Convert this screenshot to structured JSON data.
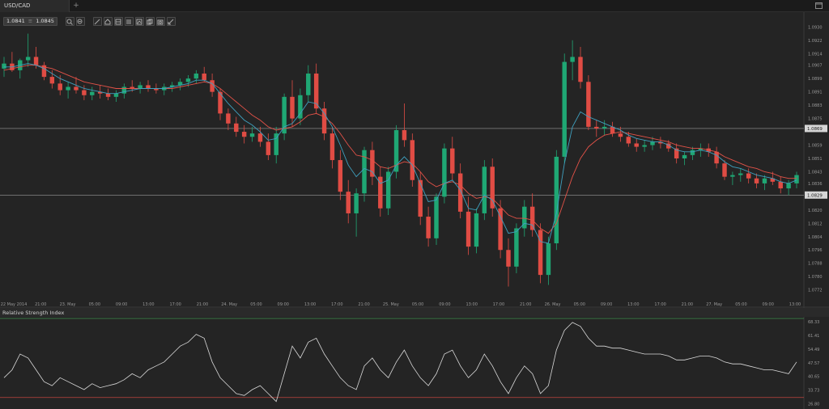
{
  "tab": {
    "symbol": "USD/CAD",
    "add_label": "+"
  },
  "quote": {
    "bid": "1.0841",
    "separator": "≡",
    "ask": "1.0845"
  },
  "toolbar_icons": [
    "zoom-in-icon",
    "zoom-out-icon",
    "draw-line-icon",
    "house-icon",
    "layers-icon",
    "list-icon",
    "chart-icon",
    "copy-icon",
    "camera-icon",
    "measure-icon"
  ],
  "price_axis": {
    "labels": [
      "1.0930",
      "1.0922",
      "1.0914",
      "1.0907",
      "1.0899",
      "1.0891",
      "1.0883",
      "1.0875",
      "1.0859",
      "1.0851",
      "1.0843",
      "1.0836",
      "1.0820",
      "1.0812",
      "1.0804",
      "1.0796",
      "1.0788",
      "1.0780",
      "1.0772"
    ],
    "highlight_upper": "1.0869",
    "highlight_lower": "1.0829"
  },
  "time_axis": {
    "labels": [
      "22 May 2014",
      "21:00",
      "23. May",
      "05:00",
      "09:00",
      "13:00",
      "17:00",
      "21:00",
      "24. May",
      "05:00",
      "09:00",
      "13:00",
      "17:00",
      "21:00",
      "25. May",
      "05:00",
      "09:00",
      "13:00",
      "17:00",
      "21:00",
      "26. May",
      "05:00",
      "09:00",
      "13:00",
      "17:00",
      "21:00",
      "27. May",
      "05:00",
      "09:00",
      "13:00"
    ]
  },
  "indicator": {
    "title": "Relative Strength Index",
    "labels": [
      "68.33",
      "61.41",
      "54.49",
      "47.57",
      "40.65",
      "33.73",
      "26.80"
    ]
  },
  "chart_data": {
    "type": "candlestick",
    "price_ylim": [
      1.0766,
      1.0936
    ],
    "rsi_ylim": [
      25.0,
      70.0
    ],
    "rsi_levels": [
      70,
      30
    ],
    "candles": [
      [
        1.0905,
        1.0912,
        1.09,
        1.0908
      ],
      [
        1.0908,
        1.0915,
        1.0903,
        1.0904
      ],
      [
        1.0904,
        1.0911,
        1.0899,
        1.091
      ],
      [
        1.091,
        1.0926,
        1.0906,
        1.0912
      ],
      [
        1.0912,
        1.0918,
        1.0905,
        1.0907
      ],
      [
        1.0907,
        1.0909,
        1.0898,
        1.09
      ],
      [
        1.09,
        1.0904,
        1.0893,
        1.0896
      ],
      [
        1.0896,
        1.0901,
        1.0889,
        1.0892
      ],
      [
        1.0892,
        1.0897,
        1.0887,
        1.0894
      ],
      [
        1.0894,
        1.09,
        1.089,
        1.0892
      ],
      [
        1.0892,
        1.0895,
        1.0886,
        1.0889
      ],
      [
        1.0889,
        1.0894,
        1.0886,
        1.0891
      ],
      [
        1.0891,
        1.0895,
        1.0887,
        1.089
      ],
      [
        1.089,
        1.0893,
        1.0886,
        1.0888
      ],
      [
        1.0888,
        1.0892,
        1.0885,
        1.089
      ],
      [
        1.089,
        1.0896,
        1.0887,
        1.0894
      ],
      [
        1.0894,
        1.0898,
        1.0891,
        1.0893
      ],
      [
        1.0893,
        1.0897,
        1.089,
        1.0895
      ],
      [
        1.0895,
        1.0898,
        1.0891,
        1.0893
      ],
      [
        1.0893,
        1.0896,
        1.089,
        1.0892
      ],
      [
        1.0892,
        1.0896,
        1.0889,
        1.0894
      ],
      [
        1.0894,
        1.0897,
        1.0891,
        1.0895
      ],
      [
        1.0895,
        1.0899,
        1.0892,
        1.0897
      ],
      [
        1.0897,
        1.0901,
        1.0894,
        1.0899
      ],
      [
        1.0899,
        1.0904,
        1.0896,
        1.0902
      ],
      [
        1.0902,
        1.0906,
        1.0897,
        1.0898
      ],
      [
        1.0898,
        1.0902,
        1.0888,
        1.0891
      ],
      [
        1.0891,
        1.0893,
        1.0874,
        1.0878
      ],
      [
        1.0878,
        1.0881,
        1.0868,
        1.0872
      ],
      [
        1.0872,
        1.0876,
        1.0864,
        1.0867
      ],
      [
        1.0867,
        1.0871,
        1.086,
        1.0864
      ],
      [
        1.0864,
        1.087,
        1.0861,
        1.0866
      ],
      [
        1.0866,
        1.087,
        1.0858,
        1.0861
      ],
      [
        1.0861,
        1.0866,
        1.085,
        1.0853
      ],
      [
        1.0853,
        1.087,
        1.0848,
        1.0866
      ],
      [
        1.0866,
        1.089,
        1.0862,
        1.0888
      ],
      [
        1.0888,
        1.0898,
        1.087,
        1.0875
      ],
      [
        1.0875,
        1.0893,
        1.0871,
        1.0889
      ],
      [
        1.0889,
        1.0907,
        1.0885,
        1.0902
      ],
      [
        1.0902,
        1.0908,
        1.0878,
        1.0881
      ],
      [
        1.0881,
        1.0885,
        1.0862,
        1.0866
      ],
      [
        1.0866,
        1.087,
        1.0845,
        1.085
      ],
      [
        1.085,
        1.0856,
        1.0826,
        1.0831
      ],
      [
        1.0831,
        1.0838,
        1.0812,
        1.0818
      ],
      [
        1.0818,
        1.0833,
        1.0804,
        1.083
      ],
      [
        1.083,
        1.0858,
        1.0825,
        1.0856
      ],
      [
        1.0856,
        1.0861,
        1.0835,
        1.084
      ],
      [
        1.084,
        1.0846,
        1.0816,
        1.0821
      ],
      [
        1.0821,
        1.0846,
        1.0817,
        1.0843
      ],
      [
        1.0843,
        1.0871,
        1.0839,
        1.0868
      ],
      [
        1.0868,
        1.0884,
        1.0858,
        1.0862
      ],
      [
        1.0862,
        1.0866,
        1.0834,
        1.0838
      ],
      [
        1.0838,
        1.0843,
        1.0811,
        1.0816
      ],
      [
        1.0816,
        1.0822,
        1.0798,
        1.0803
      ],
      [
        1.0803,
        1.083,
        1.0799,
        1.0828
      ],
      [
        1.0828,
        1.086,
        1.0824,
        1.0857
      ],
      [
        1.0857,
        1.0864,
        1.0838,
        1.0842
      ],
      [
        1.0842,
        1.0848,
        1.0815,
        1.0819
      ],
      [
        1.0819,
        1.0828,
        1.0793,
        1.0798
      ],
      [
        1.0798,
        1.0821,
        1.0794,
        1.0818
      ],
      [
        1.0818,
        1.085,
        1.0814,
        1.0846
      ],
      [
        1.0846,
        1.0851,
        1.0816,
        1.0821
      ],
      [
        1.0821,
        1.0826,
        1.0791,
        1.0796
      ],
      [
        1.0796,
        1.0803,
        1.0774,
        1.0786
      ],
      [
        1.0786,
        1.0812,
        1.0782,
        1.0809
      ],
      [
        1.0809,
        1.0826,
        1.0804,
        1.0822
      ],
      [
        1.0822,
        1.083,
        1.0804,
        1.0808
      ],
      [
        1.0808,
        1.0812,
        1.0776,
        1.0781
      ],
      [
        1.0781,
        1.0804,
        1.0775,
        1.08
      ],
      [
        1.08,
        1.0856,
        1.0796,
        1.0852
      ],
      [
        1.0852,
        1.0914,
        1.0848,
        1.0909
      ],
      [
        1.0909,
        1.0922,
        1.0898,
        1.0912
      ],
      [
        1.0912,
        1.0918,
        1.0893,
        1.0897
      ],
      [
        1.0897,
        1.0901,
        1.0868,
        1.087
      ],
      [
        1.087,
        1.0874,
        1.0864,
        1.0869
      ],
      [
        1.0869,
        1.0874,
        1.0865,
        1.087
      ],
      [
        1.087,
        1.0873,
        1.0864,
        1.0866
      ],
      [
        1.0866,
        1.087,
        1.0861,
        1.0864
      ],
      [
        1.0864,
        1.0867,
        1.0858,
        1.086
      ],
      [
        1.086,
        1.0863,
        1.0855,
        1.0858
      ],
      [
        1.0858,
        1.0862,
        1.0855,
        1.0859
      ],
      [
        1.0859,
        1.0864,
        1.0856,
        1.0861
      ],
      [
        1.0861,
        1.0864,
        1.0857,
        1.086
      ],
      [
        1.086,
        1.0862,
        1.0855,
        1.0857
      ],
      [
        1.0857,
        1.086,
        1.0848,
        1.0851
      ],
      [
        1.0851,
        1.0855,
        1.0847,
        1.0853
      ],
      [
        1.0853,
        1.0858,
        1.085,
        1.0856
      ],
      [
        1.0856,
        1.086,
        1.0852,
        1.0857
      ],
      [
        1.0857,
        1.086,
        1.0852,
        1.0855
      ],
      [
        1.0855,
        1.0858,
        1.0845,
        1.0848
      ],
      [
        1.0848,
        1.085,
        1.0838,
        1.084
      ],
      [
        1.084,
        1.0843,
        1.0835,
        1.0841
      ],
      [
        1.0841,
        1.0845,
        1.0837,
        1.0842
      ],
      [
        1.0842,
        1.0845,
        1.0836,
        1.0839
      ],
      [
        1.0839,
        1.0842,
        1.0833,
        1.0836
      ],
      [
        1.0836,
        1.0841,
        1.0832,
        1.0839
      ],
      [
        1.0839,
        1.0843,
        1.0835,
        1.0837
      ],
      [
        1.0837,
        1.084,
        1.083,
        1.0833
      ],
      [
        1.0833,
        1.0838,
        1.0829,
        1.0836
      ],
      [
        1.0836,
        1.0843,
        1.0833,
        1.0841
      ]
    ],
    "ma_fast": [
      1.0906,
      1.0906,
      1.0907,
      1.0908,
      1.0907,
      1.0905,
      1.0902,
      1.0899,
      1.0897,
      1.0895,
      1.0893,
      1.0892,
      1.0891,
      1.089,
      1.089,
      1.0891,
      1.0892,
      1.0893,
      1.0893,
      1.0893,
      1.0893,
      1.0894,
      1.0895,
      1.0896,
      1.0898,
      1.0898,
      1.0896,
      1.089,
      1.0884,
      1.0879,
      1.0874,
      1.0871,
      1.0867,
      1.0862,
      1.0863,
      1.087,
      1.0872,
      1.0878,
      1.0885,
      1.0884,
      1.0878,
      1.087,
      1.0859,
      1.0847,
      1.084,
      1.0845,
      1.0843,
      1.0836,
      1.0838,
      1.0847,
      1.0852,
      1.0847,
      1.0836,
      1.0825,
      1.0826,
      1.0836,
      1.0838,
      1.0832,
      1.0821,
      1.082,
      1.0829,
      1.0826,
      1.0816,
      1.0806,
      1.0807,
      1.0812,
      1.0811,
      1.0801,
      1.08,
      1.0818,
      1.0848,
      1.087,
      1.0879,
      1.0876,
      1.0874,
      1.0872,
      1.087,
      1.0868,
      1.0865,
      1.0863,
      1.0862,
      1.0861,
      1.0861,
      1.0859,
      1.0856,
      1.0855,
      1.0855,
      1.0856,
      1.0855,
      1.0853,
      1.0849,
      1.0846,
      1.0845,
      1.0843,
      1.0841,
      1.084,
      1.0839,
      1.0837,
      1.0836,
      1.0838
    ],
    "ma_slow": [
      1.0904,
      1.0905,
      1.0906,
      1.0907,
      1.0907,
      1.0906,
      1.0905,
      1.0903,
      1.0901,
      1.0899,
      1.0897,
      1.0896,
      1.0895,
      1.0894,
      1.0893,
      1.0893,
      1.0893,
      1.0893,
      1.0893,
      1.0893,
      1.0893,
      1.0893,
      1.0894,
      1.0895,
      1.0896,
      1.0897,
      1.0896,
      1.0893,
      1.0889,
      1.0885,
      1.0881,
      1.0877,
      1.0874,
      1.087,
      1.0868,
      1.0869,
      1.087,
      1.0873,
      1.0877,
      1.0878,
      1.0876,
      1.0872,
      1.0866,
      1.0859,
      1.0853,
      1.0852,
      1.085,
      1.0846,
      1.0845,
      1.0847,
      1.0849,
      1.0848,
      1.0843,
      1.0837,
      1.0834,
      1.0836,
      1.0837,
      1.0835,
      1.083,
      1.0827,
      1.0828,
      1.0827,
      1.0822,
      1.0817,
      1.0815,
      1.0815,
      1.0814,
      1.0809,
      1.0806,
      1.0812,
      1.0826,
      1.084,
      1.0851,
      1.0858,
      1.0862,
      1.0865,
      1.0866,
      1.0867,
      1.0866,
      1.0865,
      1.0864,
      1.0863,
      1.0862,
      1.0861,
      1.0859,
      1.0858,
      1.0857,
      1.0857,
      1.0856,
      1.0855,
      1.0852,
      1.085,
      1.0848,
      1.0846,
      1.0845,
      1.0843,
      1.0842,
      1.084,
      1.0839,
      1.0839
    ],
    "rsi": [
      40,
      44,
      52,
      50,
      44,
      38,
      36,
      40,
      38,
      36,
      34,
      37,
      35,
      36,
      37,
      39,
      42,
      40,
      44,
      46,
      48,
      52,
      56,
      58,
      62,
      60,
      48,
      40,
      36,
      32,
      31,
      34,
      36,
      32,
      28,
      42,
      56,
      50,
      58,
      60,
      52,
      46,
      40,
      36,
      34,
      46,
      50,
      44,
      40,
      48,
      54,
      46,
      40,
      36,
      42,
      52,
      54,
      46,
      40,
      44,
      52,
      46,
      38,
      32,
      40,
      46,
      42,
      32,
      36,
      54,
      64,
      68,
      66,
      60,
      56,
      56,
      55,
      55,
      54,
      53,
      52,
      52,
      52,
      51,
      49,
      49,
      50,
      51,
      51,
      50,
      48,
      47,
      47,
      46,
      45,
      44,
      44,
      43,
      42,
      48
    ]
  },
  "colors": {
    "up": "#1fa774",
    "down": "#e04c44",
    "ma_fast": "#3fa0bf",
    "ma_slow": "#e35248",
    "rsi_line": "#d9d9d9",
    "rsi_upper": "#3e8e4c",
    "rsi_lower": "#c0453e",
    "hline": "#9a9a9a"
  }
}
